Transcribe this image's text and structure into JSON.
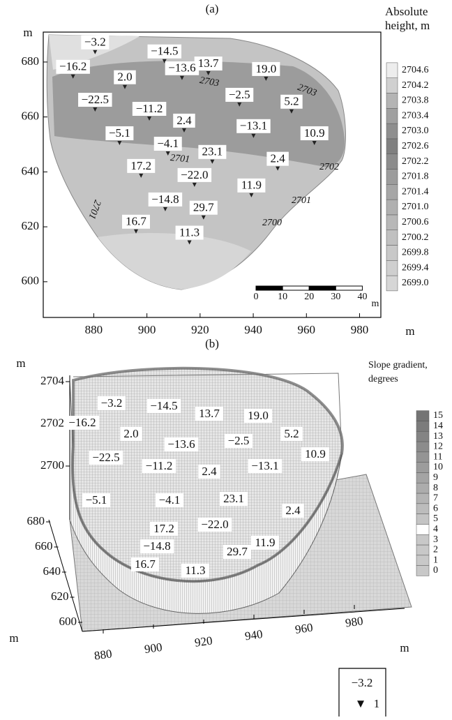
{
  "chart_data": [
    {
      "type": "contour",
      "title": "(a)",
      "x_label": "m",
      "y_label": "m",
      "xlim": [
        861,
        988
      ],
      "ylim": [
        587,
        690.9
      ],
      "xticks": [
        880,
        900,
        920,
        940,
        960,
        980
      ],
      "yticks": [
        600,
        620,
        640,
        660,
        680
      ],
      "points": {
        "x": [
          880.5,
          872.2,
          906.6,
          923.1,
          944.8,
          891.7,
          913.2,
          880.5,
          900.9,
          934.8,
          954.4,
          963,
          889.7,
          914,
          940.1,
          907.9,
          924.6,
          897.8,
          917.9,
          949.2,
          939.3,
          906.9,
          921.3,
          895.9,
          916
        ],
        "y": [
          683.6,
          674.7,
          680.3,
          675.9,
          673.9,
          670.9,
          674.2,
          662.7,
          659.4,
          664.5,
          662,
          650.5,
          650.5,
          655.1,
          653.1,
          646.7,
          643.7,
          638.6,
          635.3,
          641.2,
          631.5,
          626.4,
          623.4,
          618.3,
          614.3
        ],
        "values": [
          -3.2,
          -16.2,
          -14.5,
          13.7,
          19.0,
          2.0,
          -13.6,
          -22.5,
          -11.2,
          -2.5,
          5.2,
          10.9,
          -5.1,
          2.4,
          -13.1,
          -4.1,
          23.1,
          17.2,
          -22.0,
          2.4,
          11.9,
          -14.8,
          29.7,
          16.7,
          11.3
        ],
        "value_labels": [
          "−3.2",
          "−16.2",
          "−14.5",
          "13.7",
          "19.0",
          "2.0",
          "−13.6",
          "−22.5",
          "−11.2",
          "−2.5",
          "5.2",
          "10.9",
          "−5.1",
          "2.4",
          "−13.1",
          "−4.1",
          "23.1",
          "17.2",
          "−22.0",
          "2.4",
          "11.9",
          "−14.8",
          "29.7",
          "16.7",
          "11.3"
        ]
      },
      "contour_labels": [
        2703,
        2703,
        2701,
        2702,
        2701,
        2700,
        2701
      ],
      "colorbar": {
        "title": [
          "Absolute",
          "height, m"
        ],
        "ticks": [
          {
            "value": 2699.0,
            "label": "2699.0"
          },
          2699.4,
          2699.8,
          2700.2,
          2700.6,
          {
            "value": 2701.0,
            "label": "2701.0"
          },
          2701.4,
          2701.8,
          2702.2,
          2702.6,
          {
            "value": 2703.0,
            "label": "2703.0"
          },
          2703.4,
          2703.8,
          2704.2,
          2704.6
        ],
        "colors": [
          "#d6d6d6",
          "#cfcfcf",
          "#c8c8c8",
          "#c0c0c0",
          "#b8b8b8",
          "#b0b0b0",
          "#a6a6a6",
          "#9c9c9c",
          "#8c8c8c",
          "#808080",
          "#8e8e8e",
          "#a0a0a0",
          "#b4b4b4",
          "#d0d0d0",
          "#ededed"
        ]
      },
      "scalebar": {
        "ticks": [
          0,
          10,
          20,
          30,
          40
        ],
        "unit": "m"
      }
    },
    {
      "type": "surface3d",
      "title": "(b)",
      "x_label": "m",
      "y_label": "m",
      "z_label": "m",
      "xticks": [
        880,
        900,
        920,
        940,
        960,
        980
      ],
      "yticks": [
        600,
        620,
        640,
        660,
        680
      ],
      "zticks": [
        2700,
        2702,
        2704
      ],
      "colorbar": {
        "title": [
          "Slope gradient,",
          "degrees"
        ],
        "ticks": [
          0,
          1,
          2,
          3,
          4,
          5,
          6,
          7,
          8,
          9,
          10,
          11,
          12,
          13,
          14,
          15
        ],
        "colors": [
          "#c8c8c8",
          "#c8c8c8",
          "#c8c8c8",
          "#c8c8c8",
          "#ffffff",
          "#c4c4c4",
          "#bcbcbc",
          "#b4b4b4",
          "#acacac",
          "#a4a4a4",
          "#9c9c9c",
          "#949494",
          "#8c8c8c",
          "#848484",
          "#7c7c7c",
          "#747474"
        ]
      }
    }
  ],
  "legend": {
    "label": "−3.2",
    "number": "1"
  }
}
